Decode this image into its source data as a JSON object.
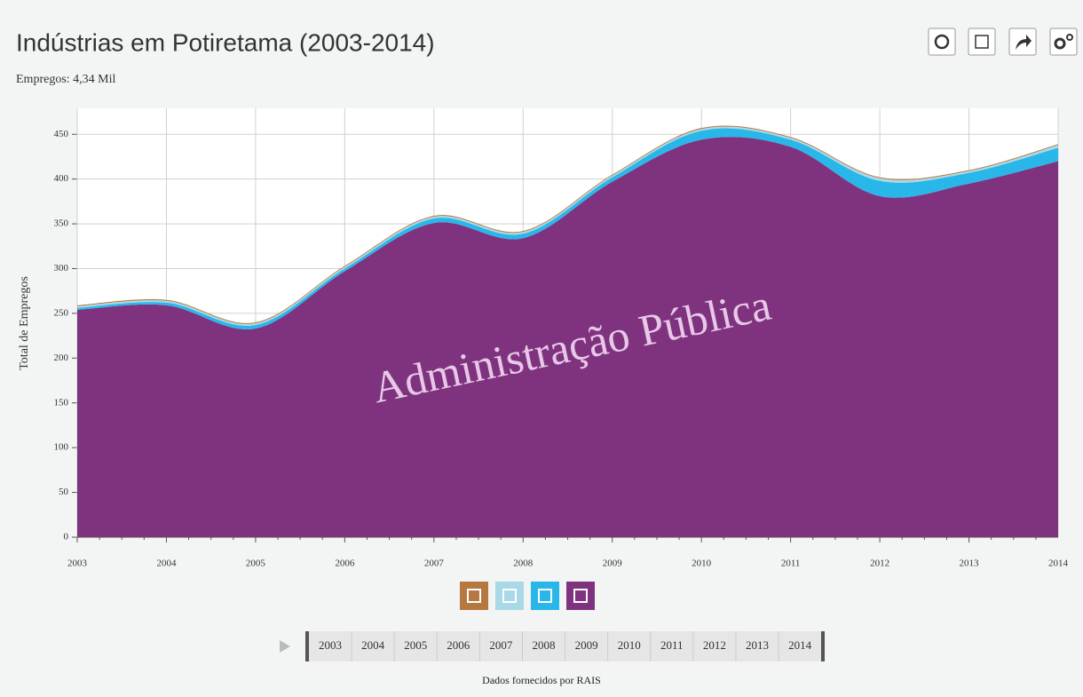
{
  "title": "Indústrias em Potiretama (2003-2014)",
  "subtitle": "Empregos: 4,34 Mil",
  "chart_data": {
    "type": "stacked_area",
    "y_label": "Total de Empregos",
    "x": [
      2003,
      2004,
      2005,
      2006,
      2007,
      2008,
      2009,
      2010,
      2011,
      2012,
      2013,
      2014
    ],
    "xlim": [
      2003,
      2014
    ],
    "xticks": [
      2003,
      2004,
      2005,
      2006,
      2007,
      2008,
      2009,
      2010,
      2011,
      2012,
      2013,
      2014
    ],
    "ylim": [
      0,
      479
    ],
    "yticks": [
      0,
      50,
      100,
      150,
      200,
      250,
      300,
      350,
      400,
      450
    ],
    "grid": true,
    "series": [
      {
        "name": "Administração Pública",
        "color": "#7f337f",
        "values": [
          254,
          259,
          233,
          297,
          351,
          334,
          397,
          444,
          436,
          381,
          395,
          420
        ]
      },
      {
        "color": "#29b7ea",
        "values": [
          2,
          3,
          4,
          3,
          5,
          5,
          5,
          10,
          8,
          17,
          12,
          15
        ]
      },
      {
        "color": "#a9d8e6",
        "values": [
          2,
          2,
          2,
          2,
          2,
          2,
          2,
          2,
          2,
          3,
          2,
          3
        ]
      },
      {
        "color": "#b5783f",
        "values": [
          1,
          1,
          1,
          1,
          1,
          1,
          1,
          1,
          1,
          1,
          1,
          1
        ]
      }
    ]
  },
  "footer": "Dados fornecidos por RAIS"
}
